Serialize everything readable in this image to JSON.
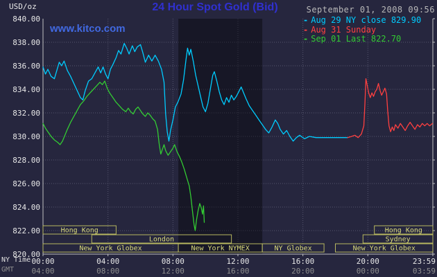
{
  "header": {
    "unit_label": "USD/oz",
    "title": "24 Hour Spot Gold (Bid)",
    "datetime": "September 01, 2008 09:56",
    "watermark": "www.kitco.com"
  },
  "legend": {
    "marker": "-",
    "position": "top-right"
  },
  "axis": {
    "ny_time_label": "NY Time",
    "gmt_label": "GMT"
  },
  "colors": {
    "background": "#26263e",
    "grid": "#55556e",
    "axis": "#c0c0c0",
    "axis_text": "#e8e8e8",
    "gmt_text": "#8f8f8f",
    "date_text": "#b8b8b8",
    "title": "#3030cf",
    "watermark": "#4169e1",
    "session_box": "#b8b860",
    "session_text": "#dada7a",
    "band": "rgba(0,0,0,0.38)"
  },
  "chart_data": {
    "type": "line",
    "title": "24 Hour Spot Gold (Bid)",
    "ylabel": "USD/oz",
    "ylim": [
      820,
      840
    ],
    "ytick_step": 2,
    "xlim_hours": [
      0,
      24
    ],
    "grid": true,
    "legend_position": "top-right",
    "x_ticks": [
      {
        "hour": 0,
        "ny": "00:00",
        "gmt": "04:00"
      },
      {
        "hour": 4,
        "ny": "04:00",
        "gmt": "08:00"
      },
      {
        "hour": 8,
        "ny": "08:00",
        "gmt": "12:00"
      },
      {
        "hour": 12,
        "ny": "12:00",
        "gmt": "16:00"
      },
      {
        "hour": 16,
        "ny": "16:00",
        "gmt": "20:00"
      },
      {
        "hour": 20,
        "ny": "20:00",
        "gmt": "00:00"
      },
      {
        "hour": 24,
        "ny": "23:59",
        "gmt": "03:59"
      }
    ],
    "highlight_band": {
      "start": 8.33,
      "end": 13.5
    },
    "sessions": [
      {
        "row": 0,
        "label": "Hong Kong",
        "start": 0,
        "end": 4.5
      },
      {
        "row": 0,
        "label": "Hong Kong",
        "start": 20.4,
        "end": 24
      },
      {
        "row": 1,
        "label": "London",
        "start": 3.0,
        "end": 11.6
      },
      {
        "row": 1,
        "label": "Sydney",
        "start": 19.7,
        "end": 24
      },
      {
        "row": 2,
        "label": "New York Globex",
        "start": 0,
        "end": 8.33
      },
      {
        "row": 2,
        "label": "New York NYMEX",
        "start": 8.33,
        "end": 13.5
      },
      {
        "row": 2,
        "label": "NY Globex",
        "start": 13.5,
        "end": 17.3
      },
      {
        "row": 2,
        "label": "New York Globex",
        "start": 18.0,
        "end": 24
      }
    ],
    "series": [
      {
        "id": "aug29",
        "name": "Aug 29 NY close 829.90",
        "close": 829.9,
        "color": "#00ccff",
        "points": [
          [
            0,
            835.9
          ],
          [
            0.15,
            835.3
          ],
          [
            0.3,
            835.7
          ],
          [
            0.5,
            835.1
          ],
          [
            0.7,
            834.9
          ],
          [
            0.85,
            835.6
          ],
          [
            1.0,
            836.3
          ],
          [
            1.15,
            836.0
          ],
          [
            1.3,
            836.4
          ],
          [
            1.5,
            835.6
          ],
          [
            1.7,
            835.1
          ],
          [
            1.9,
            834.5
          ],
          [
            2.1,
            833.9
          ],
          [
            2.3,
            833.3
          ],
          [
            2.45,
            833.1
          ],
          [
            2.6,
            833.9
          ],
          [
            2.8,
            834.7
          ],
          [
            3.0,
            834.9
          ],
          [
            3.2,
            835.4
          ],
          [
            3.4,
            835.9
          ],
          [
            3.55,
            835.4
          ],
          [
            3.7,
            835.9
          ],
          [
            3.85,
            835.3
          ],
          [
            4.0,
            834.9
          ],
          [
            4.15,
            835.7
          ],
          [
            4.3,
            836.1
          ],
          [
            4.5,
            836.7
          ],
          [
            4.65,
            837.3
          ],
          [
            4.8,
            837.0
          ],
          [
            5.0,
            837.9
          ],
          [
            5.15,
            837.5
          ],
          [
            5.3,
            837.0
          ],
          [
            5.5,
            837.7
          ],
          [
            5.65,
            837.2
          ],
          [
            5.8,
            837.6
          ],
          [
            6.0,
            837.8
          ],
          [
            6.15,
            837.1
          ],
          [
            6.3,
            836.3
          ],
          [
            6.5,
            836.9
          ],
          [
            6.7,
            836.4
          ],
          [
            6.9,
            836.9
          ],
          [
            7.1,
            836.4
          ],
          [
            7.3,
            835.7
          ],
          [
            7.45,
            834.6
          ],
          [
            7.55,
            831.9
          ],
          [
            7.65,
            830.4
          ],
          [
            7.75,
            829.6
          ],
          [
            7.85,
            830.5
          ],
          [
            8.0,
            831.4
          ],
          [
            8.15,
            832.5
          ],
          [
            8.3,
            832.9
          ],
          [
            8.5,
            833.6
          ],
          [
            8.65,
            834.8
          ],
          [
            8.8,
            836.5
          ],
          [
            8.9,
            837.5
          ],
          [
            9.0,
            836.9
          ],
          [
            9.1,
            837.4
          ],
          [
            9.25,
            836.4
          ],
          [
            9.4,
            835.2
          ],
          [
            9.55,
            834.3
          ],
          [
            9.7,
            833.4
          ],
          [
            9.85,
            832.5
          ],
          [
            10.0,
            832.1
          ],
          [
            10.15,
            832.8
          ],
          [
            10.3,
            834.0
          ],
          [
            10.45,
            835.2
          ],
          [
            10.55,
            835.5
          ],
          [
            10.7,
            834.7
          ],
          [
            10.85,
            833.8
          ],
          [
            11.0,
            833.1
          ],
          [
            11.15,
            832.7
          ],
          [
            11.3,
            833.3
          ],
          [
            11.45,
            832.9
          ],
          [
            11.6,
            833.5
          ],
          [
            11.75,
            833.1
          ],
          [
            11.9,
            833.4
          ],
          [
            12.05,
            833.8
          ],
          [
            12.2,
            834.2
          ],
          [
            12.35,
            833.7
          ],
          [
            12.5,
            833.2
          ],
          [
            12.7,
            832.6
          ],
          [
            12.9,
            832.2
          ],
          [
            13.1,
            831.8
          ],
          [
            13.3,
            831.4
          ],
          [
            13.5,
            831.0
          ],
          [
            13.7,
            830.6
          ],
          [
            13.9,
            830.3
          ],
          [
            14.1,
            830.8
          ],
          [
            14.3,
            831.4
          ],
          [
            14.45,
            831.1
          ],
          [
            14.6,
            830.6
          ],
          [
            14.8,
            830.2
          ],
          [
            15.0,
            830.5
          ],
          [
            15.2,
            830.0
          ],
          [
            15.4,
            829.6
          ],
          [
            15.6,
            829.9
          ],
          [
            15.8,
            830.1
          ],
          [
            16.1,
            829.8
          ],
          [
            16.4,
            830.0
          ],
          [
            16.8,
            829.9
          ],
          [
            17.2,
            829.9
          ],
          [
            17.7,
            829.9
          ],
          [
            18.2,
            829.9
          ],
          [
            18.75,
            829.9
          ]
        ]
      },
      {
        "id": "aug31",
        "name": "Aug 31 Sunday",
        "color": "#ff4040",
        "points": [
          [
            18.75,
            829.9
          ],
          [
            19.0,
            830.0
          ],
          [
            19.2,
            830.1
          ],
          [
            19.4,
            829.9
          ],
          [
            19.6,
            830.2
          ],
          [
            19.75,
            830.9
          ],
          [
            19.82,
            832.8
          ],
          [
            19.88,
            834.9
          ],
          [
            19.95,
            834.4
          ],
          [
            20.05,
            833.7
          ],
          [
            20.15,
            833.3
          ],
          [
            20.25,
            833.7
          ],
          [
            20.35,
            833.4
          ],
          [
            20.45,
            833.8
          ],
          [
            20.55,
            834.0
          ],
          [
            20.65,
            834.5
          ],
          [
            20.75,
            833.9
          ],
          [
            20.85,
            833.5
          ],
          [
            20.95,
            833.8
          ],
          [
            21.05,
            834.1
          ],
          [
            21.15,
            833.6
          ],
          [
            21.22,
            832.2
          ],
          [
            21.3,
            830.9
          ],
          [
            21.4,
            830.4
          ],
          [
            21.5,
            830.8
          ],
          [
            21.6,
            830.5
          ],
          [
            21.7,
            831.0
          ],
          [
            21.85,
            830.7
          ],
          [
            22.0,
            831.1
          ],
          [
            22.15,
            830.8
          ],
          [
            22.3,
            830.5
          ],
          [
            22.45,
            830.9
          ],
          [
            22.6,
            831.2
          ],
          [
            22.75,
            830.9
          ],
          [
            22.9,
            830.6
          ],
          [
            23.05,
            831.0
          ],
          [
            23.2,
            830.8
          ],
          [
            23.35,
            831.1
          ],
          [
            23.5,
            830.9
          ],
          [
            23.65,
            831.1
          ],
          [
            23.8,
            830.9
          ],
          [
            23.98,
            831.1
          ]
        ]
      },
      {
        "id": "sep01",
        "name": "Sep 01 Last 822.70",
        "last": 822.7,
        "color": "#33cc33",
        "points": [
          [
            0,
            831.1
          ],
          [
            0.15,
            830.7
          ],
          [
            0.3,
            830.4
          ],
          [
            0.5,
            830.0
          ],
          [
            0.7,
            829.7
          ],
          [
            0.9,
            829.5
          ],
          [
            1.05,
            829.3
          ],
          [
            1.2,
            829.6
          ],
          [
            1.35,
            830.1
          ],
          [
            1.5,
            830.6
          ],
          [
            1.7,
            831.2
          ],
          [
            1.9,
            831.7
          ],
          [
            2.1,
            832.2
          ],
          [
            2.3,
            832.7
          ],
          [
            2.5,
            833.0
          ],
          [
            2.7,
            833.4
          ],
          [
            2.9,
            833.7
          ],
          [
            3.1,
            834.0
          ],
          [
            3.3,
            834.3
          ],
          [
            3.5,
            834.6
          ],
          [
            3.65,
            834.4
          ],
          [
            3.8,
            834.7
          ],
          [
            3.95,
            834.1
          ],
          [
            4.1,
            833.7
          ],
          [
            4.3,
            833.3
          ],
          [
            4.5,
            832.9
          ],
          [
            4.7,
            832.6
          ],
          [
            4.9,
            832.3
          ],
          [
            5.1,
            832.1
          ],
          [
            5.25,
            832.4
          ],
          [
            5.4,
            832.1
          ],
          [
            5.55,
            831.9
          ],
          [
            5.7,
            832.3
          ],
          [
            5.85,
            832.5
          ],
          [
            6.0,
            832.2
          ],
          [
            6.15,
            831.9
          ],
          [
            6.3,
            831.7
          ],
          [
            6.45,
            832.0
          ],
          [
            6.6,
            831.8
          ],
          [
            6.75,
            831.5
          ],
          [
            6.9,
            831.3
          ],
          [
            7.05,
            830.6
          ],
          [
            7.15,
            829.4
          ],
          [
            7.25,
            828.5
          ],
          [
            7.35,
            828.9
          ],
          [
            7.45,
            829.3
          ],
          [
            7.55,
            828.8
          ],
          [
            7.7,
            828.4
          ],
          [
            7.85,
            828.7
          ],
          [
            8.0,
            829.0
          ],
          [
            8.1,
            829.3
          ],
          [
            8.25,
            828.7
          ],
          [
            8.4,
            828.3
          ],
          [
            8.55,
            827.8
          ],
          [
            8.7,
            827.2
          ],
          [
            8.85,
            826.5
          ],
          [
            9.0,
            825.8
          ],
          [
            9.1,
            824.9
          ],
          [
            9.2,
            823.7
          ],
          [
            9.3,
            822.5
          ],
          [
            9.37,
            822.0
          ],
          [
            9.45,
            822.9
          ],
          [
            9.55,
            823.7
          ],
          [
            9.65,
            824.3
          ],
          [
            9.75,
            823.9
          ],
          [
            9.82,
            823.4
          ],
          [
            9.88,
            824.1
          ],
          [
            9.93,
            822.7
          ]
        ]
      }
    ]
  }
}
